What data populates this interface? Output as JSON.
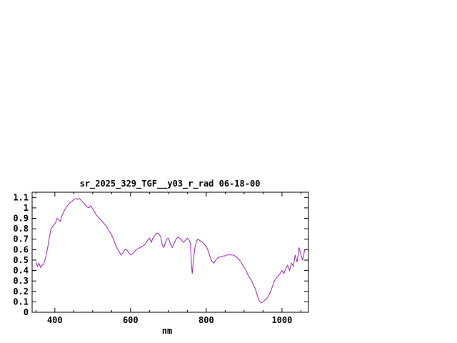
{
  "window": {
    "background_color": "#ffffff",
    "text_color": "#000000"
  },
  "chart_data": {
    "type": "line",
    "title": "sr_2025_329_TGF__y03_r_rad 06-18-00",
    "xlabel": "nm",
    "ylabel": "",
    "x_range": [
      340,
      1070
    ],
    "y_range": [
      0,
      1.15
    ],
    "grid": false,
    "legend": "none",
    "line_color": "#a020c0",
    "x_ticks": [
      {
        "v": 400,
        "label": "400"
      },
      {
        "v": 600,
        "label": "600"
      },
      {
        "v": 800,
        "label": "800"
      },
      {
        "v": 1000,
        "label": "1000"
      }
    ],
    "x_minor_ticks": [
      350,
      450,
      500,
      550,
      650,
      700,
      750,
      850,
      900,
      950,
      1050
    ],
    "y_ticks": [
      {
        "v": 0,
        "label": "0"
      },
      {
        "v": 0.1,
        "label": "0.1"
      },
      {
        "v": 0.2,
        "label": "0.2"
      },
      {
        "v": 0.3,
        "label": "0.3"
      },
      {
        "v": 0.4,
        "label": "0.4"
      },
      {
        "v": 0.5,
        "label": "0.5"
      },
      {
        "v": 0.6,
        "label": "0.6"
      },
      {
        "v": 0.7,
        "label": "0.7"
      },
      {
        "v": 0.8,
        "label": "0.8"
      },
      {
        "v": 0.9,
        "label": "0.9"
      },
      {
        "v": 1.0,
        "label": "1"
      },
      {
        "v": 1.1,
        "label": "1.1"
      }
    ],
    "series": [
      {
        "name": "sr_2025_329_TGF__y03_r_rad",
        "points": [
          [
            350,
            0.48
          ],
          [
            354,
            0.44
          ],
          [
            358,
            0.47
          ],
          [
            362,
            0.43
          ],
          [
            366,
            0.45
          ],
          [
            370,
            0.46
          ],
          [
            374,
            0.5
          ],
          [
            378,
            0.56
          ],
          [
            382,
            0.64
          ],
          [
            386,
            0.73
          ],
          [
            390,
            0.8
          ],
          [
            394,
            0.82
          ],
          [
            398,
            0.84
          ],
          [
            402,
            0.86
          ],
          [
            406,
            0.9
          ],
          [
            410,
            0.89
          ],
          [
            414,
            0.87
          ],
          [
            418,
            0.92
          ],
          [
            422,
            0.95
          ],
          [
            426,
            0.98
          ],
          [
            430,
            1.0
          ],
          [
            435,
            1.03
          ],
          [
            440,
            1.05
          ],
          [
            445,
            1.06
          ],
          [
            450,
            1.08
          ],
          [
            455,
            1.09
          ],
          [
            460,
            1.08
          ],
          [
            465,
            1.09
          ],
          [
            470,
            1.07
          ],
          [
            475,
            1.05
          ],
          [
            480,
            1.03
          ],
          [
            485,
            1.01
          ],
          [
            490,
            1.0
          ],
          [
            495,
            1.02
          ],
          [
            500,
            0.99
          ],
          [
            505,
            0.96
          ],
          [
            510,
            0.93
          ],
          [
            515,
            0.91
          ],
          [
            520,
            0.89
          ],
          [
            525,
            0.87
          ],
          [
            530,
            0.85
          ],
          [
            535,
            0.83
          ],
          [
            540,
            0.8
          ],
          [
            545,
            0.77
          ],
          [
            550,
            0.74
          ],
          [
            555,
            0.7
          ],
          [
            560,
            0.65
          ],
          [
            565,
            0.61
          ],
          [
            570,
            0.58
          ],
          [
            575,
            0.55
          ],
          [
            580,
            0.57
          ],
          [
            585,
            0.6
          ],
          [
            590,
            0.6
          ],
          [
            595,
            0.57
          ],
          [
            600,
            0.55
          ],
          [
            605,
            0.56
          ],
          [
            610,
            0.58
          ],
          [
            615,
            0.6
          ],
          [
            620,
            0.61
          ],
          [
            625,
            0.62
          ],
          [
            630,
            0.63
          ],
          [
            635,
            0.64
          ],
          [
            640,
            0.66
          ],
          [
            645,
            0.69
          ],
          [
            650,
            0.71
          ],
          [
            655,
            0.67
          ],
          [
            660,
            0.72
          ],
          [
            665,
            0.74
          ],
          [
            670,
            0.76
          ],
          [
            675,
            0.75
          ],
          [
            680,
            0.72
          ],
          [
            684,
            0.64
          ],
          [
            688,
            0.62
          ],
          [
            692,
            0.67
          ],
          [
            696,
            0.7
          ],
          [
            700,
            0.71
          ],
          [
            705,
            0.66
          ],
          [
            710,
            0.62
          ],
          [
            715,
            0.66
          ],
          [
            720,
            0.7
          ],
          [
            725,
            0.72
          ],
          [
            730,
            0.71
          ],
          [
            735,
            0.69
          ],
          [
            740,
            0.67
          ],
          [
            745,
            0.69
          ],
          [
            750,
            0.71
          ],
          [
            755,
            0.69
          ],
          [
            758,
            0.66
          ],
          [
            761,
            0.45
          ],
          [
            763,
            0.37
          ],
          [
            766,
            0.5
          ],
          [
            770,
            0.62
          ],
          [
            774,
            0.68
          ],
          [
            778,
            0.7
          ],
          [
            782,
            0.69
          ],
          [
            786,
            0.68
          ],
          [
            790,
            0.67
          ],
          [
            795,
            0.65
          ],
          [
            800,
            0.63
          ],
          [
            805,
            0.59
          ],
          [
            810,
            0.53
          ],
          [
            815,
            0.49
          ],
          [
            820,
            0.47
          ],
          [
            825,
            0.5
          ],
          [
            830,
            0.52
          ],
          [
            835,
            0.53
          ],
          [
            840,
            0.53
          ],
          [
            845,
            0.54
          ],
          [
            850,
            0.54
          ],
          [
            855,
            0.55
          ],
          [
            860,
            0.55
          ],
          [
            865,
            0.55
          ],
          [
            870,
            0.55
          ],
          [
            875,
            0.54
          ],
          [
            880,
            0.53
          ],
          [
            885,
            0.51
          ],
          [
            890,
            0.49
          ],
          [
            895,
            0.46
          ],
          [
            900,
            0.43
          ],
          [
            905,
            0.4
          ],
          [
            910,
            0.36
          ],
          [
            915,
            0.33
          ],
          [
            920,
            0.3
          ],
          [
            925,
            0.26
          ],
          [
            930,
            0.22
          ],
          [
            935,
            0.16
          ],
          [
            940,
            0.11
          ],
          [
            945,
            0.09
          ],
          [
            950,
            0.1
          ],
          [
            955,
            0.12
          ],
          [
            960,
            0.13
          ],
          [
            965,
            0.16
          ],
          [
            970,
            0.2
          ],
          [
            975,
            0.25
          ],
          [
            980,
            0.3
          ],
          [
            985,
            0.33
          ],
          [
            990,
            0.35
          ],
          [
            995,
            0.37
          ],
          [
            1000,
            0.4
          ],
          [
            1005,
            0.37
          ],
          [
            1010,
            0.42
          ],
          [
            1015,
            0.45
          ],
          [
            1020,
            0.4
          ],
          [
            1025,
            0.47
          ],
          [
            1030,
            0.44
          ],
          [
            1035,
            0.55
          ],
          [
            1040,
            0.48
          ],
          [
            1045,
            0.62
          ],
          [
            1050,
            0.55
          ],
          [
            1055,
            0.5
          ],
          [
            1060,
            0.6
          ]
        ]
      }
    ]
  }
}
